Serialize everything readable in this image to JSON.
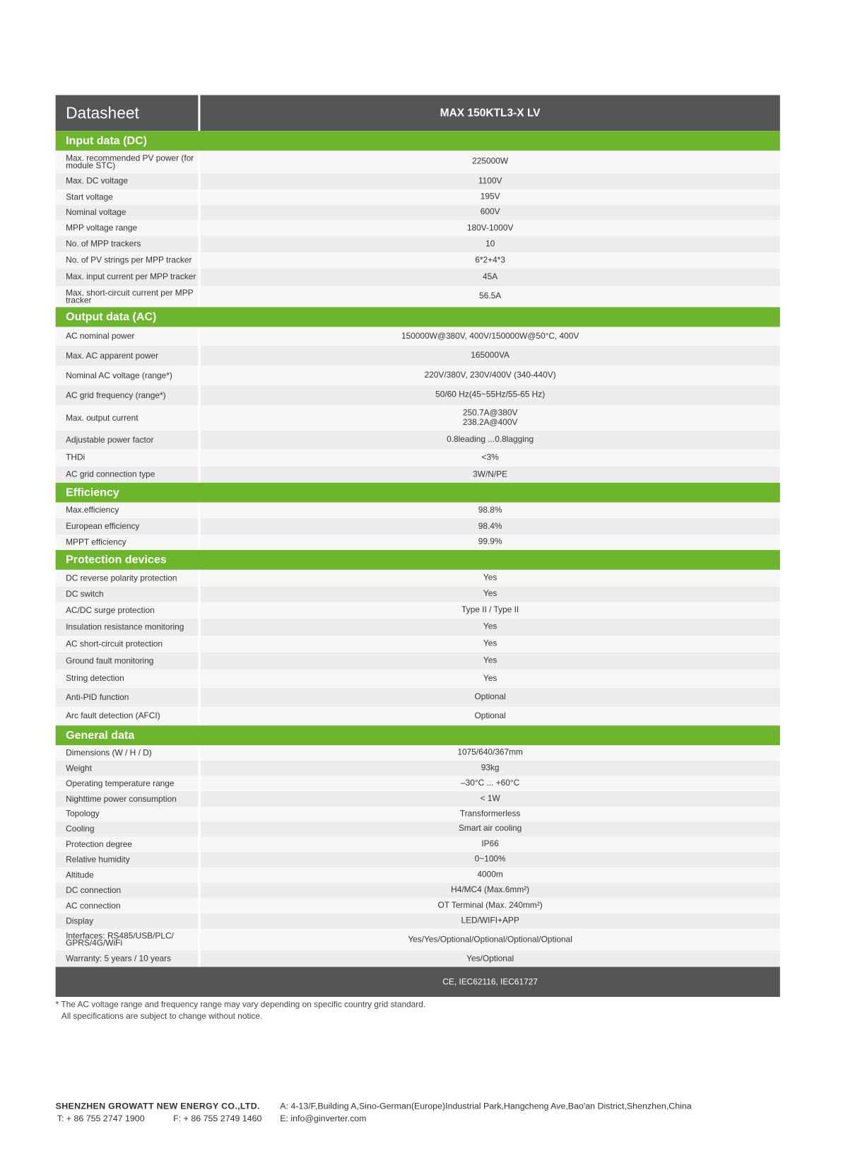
{
  "header": {
    "title": "Datasheet",
    "model": "MAX 150KTL3-X LV"
  },
  "sections": [
    {
      "title": "Input data (DC)",
      "rows": [
        {
          "label": "Max. recommended PV power (for module STC)",
          "value": "225000W",
          "h": 31
        },
        {
          "label": "Max. DC voltage",
          "value": "1100V",
          "h": 22
        },
        {
          "label": "Start voltage",
          "value": "195V",
          "h": 21
        },
        {
          "label": "Nominal voltage",
          "value": "600V",
          "h": 21
        },
        {
          "label": "MPP voltage range",
          "value": "180V-1000V",
          "h": 22
        },
        {
          "label": "No. of MPP trackers",
          "value": "10",
          "h": 22
        },
        {
          "label": "No. of PV strings per MPP tracker",
          "value": "6*2+4*3",
          "h": 22
        },
        {
          "label": "Max. input current per MPP tracker",
          "value": "45A",
          "h": 24
        },
        {
          "label": "Max. short-circuit current per MPP tracker",
          "value": "56.5A",
          "h": 29
        }
      ]
    },
    {
      "title": "Output data (AC)",
      "rows": [
        {
          "label": "AC nominal power",
          "value": "150000W@380V, 400V/150000W@50°C, 400V",
          "h": 26
        },
        {
          "label": "Max. AC apparent power",
          "value": "165000VA",
          "h": 27
        },
        {
          "label": "Nominal AC voltage (range*)",
          "value": "220V/380V, 230V/400V (340-440V)",
          "h": 27
        },
        {
          "label": "AC grid frequency (range*)",
          "value": "50/60 Hz(45~55Hz/55-65 Hz)",
          "h": 27
        },
        {
          "label": "Max. output current",
          "value": "250.7A@380V\n238.2A@400V",
          "h": 35
        },
        {
          "label": "Adjustable power factor",
          "value": "0.8leading ...0.8lagging",
          "h": 25
        },
        {
          "label": "THDi",
          "value": "<3%",
          "h": 24
        },
        {
          "label": "AC grid connection type",
          "value": "3W/N/PE",
          "h": 22
        }
      ]
    },
    {
      "title": "Efficiency",
      "rows": [
        {
          "label": "Max.efficiency",
          "value": "98.8%",
          "h": 22
        },
        {
          "label": "European efficiency",
          "value": "98.4%",
          "h": 22
        },
        {
          "label": "MPPT efficiency",
          "value": "99.9%",
          "h": 21
        }
      ]
    },
    {
      "title": "Protection devices",
      "rows": [
        {
          "label": "DC reverse polarity protection",
          "value": "Yes",
          "h": 23
        },
        {
          "label": "DC switch",
          "value": "Yes",
          "h": 21
        },
        {
          "label": "AC/DC surge protection",
          "value": "Type II / Type II",
          "h": 23
        },
        {
          "label": "Insulation resistance monitoring",
          "value": "Yes",
          "h": 23
        },
        {
          "label": "AC short-circuit protection",
          "value": "Yes",
          "h": 23
        },
        {
          "label": "Ground fault monitoring",
          "value": "Yes",
          "h": 23
        },
        {
          "label": "String detection",
          "value": "Yes",
          "h": 26
        },
        {
          "label": "Anti-PID function",
          "value": "Optional",
          "h": 25
        },
        {
          "label": "Arc fault detection (AFCI)",
          "value": "Optional",
          "h": 26
        }
      ]
    },
    {
      "title": "General data",
      "rows": [
        {
          "label": "Dimensions (W / H / D)",
          "value": "1075/640/367mm",
          "h": 21
        },
        {
          "label": "Weight",
          "value": "93kg",
          "h": 21
        },
        {
          "label": "Operating temperature range",
          "value": "–30°C ... +60°C",
          "h": 21
        },
        {
          "label": "Nighttime power consumption",
          "value": "< 1W",
          "h": 21
        },
        {
          "label": "Topology",
          "value": "Transformerless",
          "h": 20
        },
        {
          "label": "Cooling",
          "value": "Smart air cooling",
          "h": 21
        },
        {
          "label": "Protection degree",
          "value": "IP66",
          "h": 21
        },
        {
          "label": "Relative humidity",
          "value": "0~100%",
          "h": 21
        },
        {
          "label": "Altitude",
          "value": "4000m",
          "h": 21
        },
        {
          "label": "DC connection",
          "value": "H4/MC4 (Max.6mm²)",
          "h": 21
        },
        {
          "label": "AC connection",
          "value": "OT Terminal (Max. 240mm²)",
          "h": 21
        },
        {
          "label": "Display",
          "value": "LED/WIFI+APP",
          "h": 21
        },
        {
          "label": "Interfaces: RS485/USB/PLC/ GPRS/4G/WiFi",
          "value": "Yes/Yes/Optional/Optional/Optional/Optional",
          "h": 30
        },
        {
          "label": "Warranty: 5 years / 10 years",
          "value": "Yes/Optional",
          "h": 22
        }
      ]
    }
  ],
  "certification": "CE, IEC62116, IEC61727",
  "notes": [
    "* The AC voltage range and frequency range may vary depending on specific country grid standard.",
    "All specifications are subject to change without notice."
  ],
  "footer": {
    "company": "SHENZHEN GROWATT NEW ENERGY CO.,LTD.",
    "address": "A: 4-13/F,Building A,Sino-German(Europe)Industrial Park,Hangcheng Ave,Bao'an District,Shenzhen,China",
    "phone": "T:  + 86 755 2747 1900",
    "fax": "F:  + 86 755 2749 1460",
    "email": "E:  info@ginverter.com"
  },
  "colors": {
    "green": "#6cb52d",
    "dark": "#555555"
  }
}
